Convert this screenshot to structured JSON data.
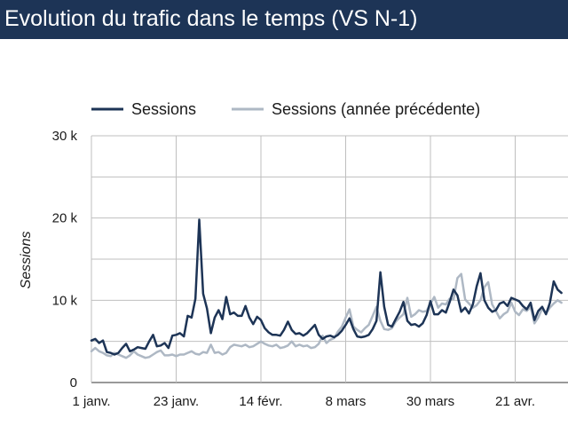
{
  "header": {
    "title": "Evolution du trafic dans le temps (VS N-1)"
  },
  "colors": {
    "header_bg": "#1d3456",
    "sessions": "#1d3456",
    "sessions_prev": "#aeb8c4",
    "grid": "#bfbfbf"
  },
  "chart_data": {
    "type": "line",
    "title": "",
    "ylabel": "Sessions",
    "xlabel": "",
    "ylim": [
      0,
      30000
    ],
    "y_ticks": [
      0,
      10000,
      20000,
      30000
    ],
    "y_tick_labels": [
      "0",
      "10 k",
      "20 k",
      "30 k"
    ],
    "x_start": "1 janv.",
    "x_tick_days": [
      0,
      22,
      44,
      66,
      88,
      110
    ],
    "x_tick_labels": [
      "1 janv.",
      "23 janv.",
      "14 févr.",
      "8 mars",
      "30 mars",
      "21 avr."
    ],
    "x_days_visible": 123,
    "grid": true,
    "legend_position": "top",
    "series": [
      {
        "name": "Sessions",
        "color": "#1d3456",
        "values": [
          5100,
          5300,
          4800,
          5100,
          3700,
          3600,
          3400,
          3600,
          4200,
          4700,
          3800,
          4000,
          4300,
          4200,
          4100,
          5000,
          5800,
          4400,
          4500,
          4800,
          4200,
          5700,
          5800,
          6000,
          5600,
          8100,
          7900,
          10200,
          19800,
          10800,
          9000,
          6000,
          7900,
          8800,
          7700,
          10400,
          8300,
          8500,
          8100,
          8100,
          9300,
          7900,
          7100,
          8000,
          7600,
          6600,
          6100,
          5800,
          5800,
          5700,
          6400,
          7400,
          6400,
          5900,
          6000,
          5700,
          6000,
          6500,
          7000,
          5800,
          5300,
          5600,
          5700,
          5500,
          5800,
          6300,
          7000,
          7800,
          6500,
          5600,
          5500,
          5600,
          5800,
          6500,
          7500,
          13400,
          9200,
          7000,
          6800,
          7700,
          8600,
          9800,
          7500,
          7000,
          7100,
          6800,
          7200,
          8200,
          9900,
          8300,
          8300,
          8800,
          8500,
          9800,
          11300,
          10600,
          8600,
          9100,
          8400,
          9500,
          11700,
          13300,
          10000,
          9100,
          8600,
          8800,
          9600,
          9800,
          9300,
          10300,
          10100,
          9900,
          9300,
          8900,
          9700,
          7600,
          8700,
          9200,
          8300,
          9700,
          12300,
          11300,
          10900
        ]
      },
      {
        "name": "Sessions (année précédente)",
        "color": "#aeb8c4",
        "values": [
          3800,
          4200,
          3800,
          3600,
          3300,
          3200,
          3600,
          3400,
          3200,
          3000,
          3300,
          3800,
          3400,
          3200,
          3000,
          3100,
          3400,
          3700,
          3900,
          3300,
          3300,
          3400,
          3200,
          3400,
          3400,
          3600,
          3800,
          3500,
          3400,
          3700,
          3600,
          4600,
          3600,
          3700,
          3400,
          3600,
          4300,
          4600,
          4500,
          4400,
          4600,
          4300,
          4400,
          4700,
          5000,
          4700,
          4500,
          4400,
          4600,
          4200,
          4300,
          4500,
          5000,
          4400,
          4600,
          4400,
          4500,
          4200,
          4300,
          4700,
          5700,
          4800,
          5200,
          5400,
          6200,
          6800,
          7900,
          8900,
          6800,
          6400,
          6100,
          6600,
          7000,
          8100,
          9200,
          7500,
          6500,
          6400,
          6600,
          7400,
          7900,
          8300,
          10300,
          8000,
          8300,
          8800,
          8600,
          8700,
          9600,
          10400,
          9100,
          9600,
          9500,
          10200,
          10100,
          12700,
          13200,
          10100,
          9600,
          9100,
          9400,
          10000,
          11600,
          12200,
          9500,
          8700,
          7800,
          8300,
          8600,
          9700,
          8600,
          8200,
          8900,
          8700,
          9200,
          7200,
          7900,
          9000,
          8400,
          9100,
          9600,
          10000,
          9700
        ]
      }
    ]
  }
}
